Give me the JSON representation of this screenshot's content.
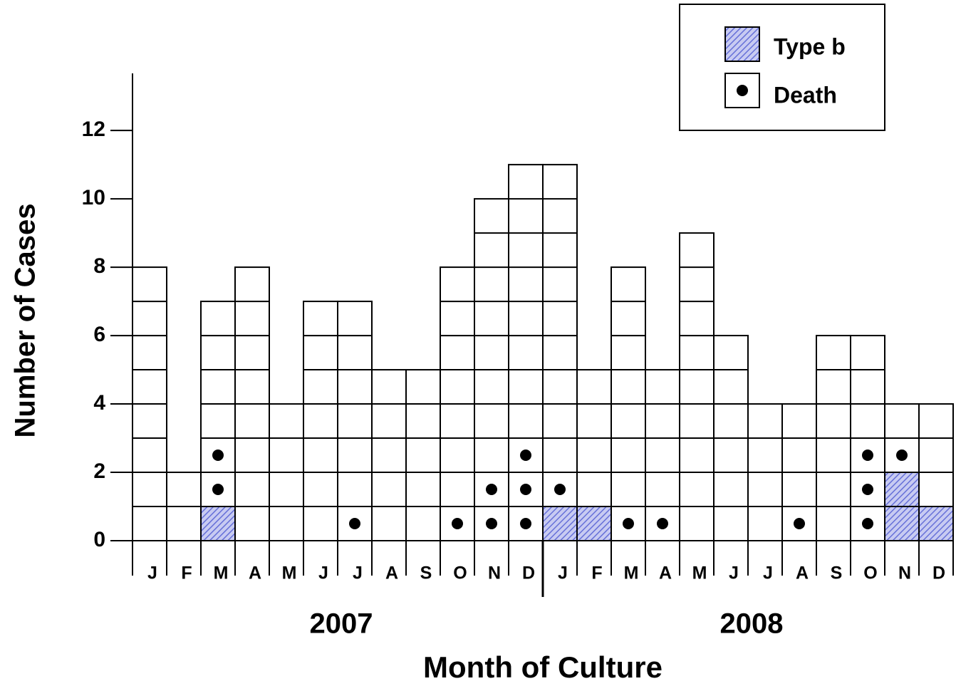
{
  "chart_data": {
    "type": "bar",
    "y_label": "Number of Cases",
    "x_label": "Month of Culture",
    "categories": [
      "J",
      "F",
      "M",
      "A",
      "M",
      "J",
      "J",
      "A",
      "S",
      "O",
      "N",
      "D",
      "J",
      "F",
      "M",
      "A",
      "M",
      "J",
      "J",
      "A",
      "S",
      "O",
      "N",
      "D"
    ],
    "groups": [
      "2007",
      "2008"
    ],
    "values": [
      8,
      2,
      7,
      8,
      4,
      7,
      7,
      5,
      5,
      8,
      10,
      11,
      11,
      5,
      8,
      5,
      9,
      6,
      4,
      4,
      6,
      6,
      4,
      4
    ],
    "color": "#ffffff",
    "series": [
      {
        "name": "Type b",
        "color": "#6670d8",
        "values": [
          0,
          0,
          1,
          0,
          0,
          0,
          0,
          0,
          0,
          0,
          0,
          0,
          1,
          1,
          0,
          0,
          0,
          0,
          0,
          0,
          0,
          0,
          2,
          1
        ]
      },
      {
        "name": "Death",
        "color": "#000000",
        "values": [
          0,
          0,
          2,
          0,
          0,
          0,
          1,
          0,
          0,
          1,
          2,
          3,
          1,
          0,
          1,
          1,
          0,
          0,
          0,
          1,
          0,
          3,
          1,
          0
        ]
      }
    ],
    "ylim": [
      0,
      13.67
    ],
    "yticks": [
      0,
      2,
      4,
      6,
      8,
      10,
      12
    ],
    "legend": "upper right"
  }
}
